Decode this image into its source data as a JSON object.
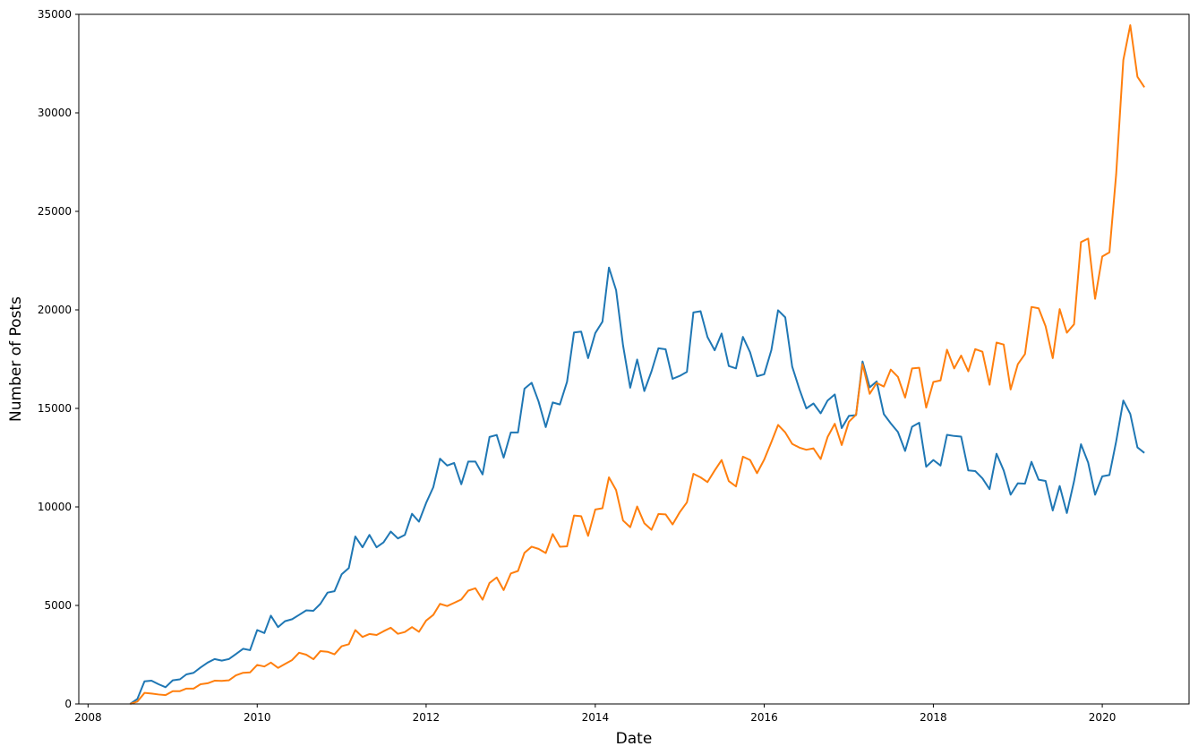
{
  "chart_data": {
    "type": "line",
    "title": "",
    "xlabel": "Date",
    "ylabel": "Number of Posts",
    "xlim": [
      "2007-11-22",
      "2021-01-10"
    ],
    "ylim": [
      0,
      35000
    ],
    "x_ticks": [
      "2008",
      "2010",
      "2012",
      "2014",
      "2016",
      "2018",
      "2020"
    ],
    "y_ticks": [
      "0",
      "5000",
      "10000",
      "15000",
      "20000",
      "25000",
      "30000",
      "35000"
    ],
    "grid": false,
    "legend": "none",
    "series": [
      {
        "color": "#1f77b4",
        "x": [
          "2008-07",
          "2008-08",
          "2008-09",
          "2008-10",
          "2008-11",
          "2008-12",
          "2009-01",
          "2009-02",
          "2009-03",
          "2009-04",
          "2009-05",
          "2009-06",
          "2009-07",
          "2009-08",
          "2009-09",
          "2009-10",
          "2009-11",
          "2009-12",
          "2010-01",
          "2010-02",
          "2010-03",
          "2010-04",
          "2010-05",
          "2010-06",
          "2010-07",
          "2010-08",
          "2010-09",
          "2010-10",
          "2010-11",
          "2010-12",
          "2011-01",
          "2011-02",
          "2011-03",
          "2011-04",
          "2011-05",
          "2011-06",
          "2011-07",
          "2011-08",
          "2011-09",
          "2011-10",
          "2011-11",
          "2011-12",
          "2012-01",
          "2012-02",
          "2012-03",
          "2012-04",
          "2012-05",
          "2012-06",
          "2012-07",
          "2012-08",
          "2012-09",
          "2012-10",
          "2012-11",
          "2012-12",
          "2013-01",
          "2013-02",
          "2013-03",
          "2013-04",
          "2013-05",
          "2013-06",
          "2013-07",
          "2013-08",
          "2013-09",
          "2013-10",
          "2013-11",
          "2013-12",
          "2014-01",
          "2014-02",
          "2014-03",
          "2014-04",
          "2014-05",
          "2014-06",
          "2014-07",
          "2014-08",
          "2014-09",
          "2014-10",
          "2014-11",
          "2014-12",
          "2015-01",
          "2015-02",
          "2015-03",
          "2015-04",
          "2015-05",
          "2015-06",
          "2015-07",
          "2015-08",
          "2015-09",
          "2015-10",
          "2015-11",
          "2015-12",
          "2016-01",
          "2016-02",
          "2016-03",
          "2016-04",
          "2016-05",
          "2016-06",
          "2016-07",
          "2016-08",
          "2016-09",
          "2016-10",
          "2016-11",
          "2016-12",
          "2017-01",
          "2017-02",
          "2017-03",
          "2017-04",
          "2017-05",
          "2017-06",
          "2017-07",
          "2017-08",
          "2017-09",
          "2017-10",
          "2017-11",
          "2017-12",
          "2018-01",
          "2018-02",
          "2018-03",
          "2018-04",
          "2018-05",
          "2018-06",
          "2018-07",
          "2018-08",
          "2018-09",
          "2018-10",
          "2018-11",
          "2018-12",
          "2019-01",
          "2019-02",
          "2019-03",
          "2019-04",
          "2019-05",
          "2019-06",
          "2019-07",
          "2019-08",
          "2019-09",
          "2019-10",
          "2019-11",
          "2019-12",
          "2020-01",
          "2020-02",
          "2020-03",
          "2020-04",
          "2020-05",
          "2020-06",
          "2020-07"
        ],
        "y": [
          0,
          250,
          1150,
          1180,
          1000,
          850,
          1200,
          1250,
          1500,
          1580,
          1850,
          2100,
          2280,
          2200,
          2280,
          2530,
          2800,
          2730,
          3750,
          3600,
          4480,
          3900,
          4200,
          4300,
          4520,
          4750,
          4730,
          5080,
          5650,
          5720,
          6580,
          6900,
          8500,
          7950,
          8580,
          7950,
          8200,
          8750,
          8400,
          8580,
          9650,
          9250,
          10200,
          11000,
          12450,
          12100,
          12230,
          11150,
          12300,
          12300,
          11650,
          13550,
          13650,
          12500,
          13780,
          13780,
          16000,
          16300,
          15350,
          14050,
          15300,
          15200,
          16350,
          18850,
          18900,
          17550,
          18820,
          19400,
          22150,
          21000,
          18200,
          16050,
          17480,
          15880,
          16880,
          18050,
          18000,
          16500,
          16650,
          16850,
          19870,
          19930,
          18620,
          17950,
          18800,
          17150,
          17030,
          18630,
          17850,
          16630,
          16730,
          17960,
          19980,
          19620,
          17120,
          15980,
          15000,
          15250,
          14750,
          15400,
          15710,
          14000,
          14620,
          14660,
          17380,
          16070,
          16370,
          14710,
          14240,
          13800,
          12840,
          14070,
          14270,
          12040,
          12380,
          12100,
          13660,
          13600,
          13570,
          11850,
          11820,
          11450,
          10900,
          12700,
          11850,
          10620,
          11200,
          11180,
          12290,
          11380,
          11320,
          9820,
          11060,
          9690,
          11300,
          13180,
          12250,
          10620,
          11550,
          11620,
          13320,
          15400,
          14720,
          13020,
          12740
        ]
      },
      {
        "color": "#ff7f0e",
        "x": [
          "2008-07",
          "2008-08",
          "2008-09",
          "2008-10",
          "2008-11",
          "2008-12",
          "2009-01",
          "2009-02",
          "2009-03",
          "2009-04",
          "2009-05",
          "2009-06",
          "2009-07",
          "2009-08",
          "2009-09",
          "2009-10",
          "2009-11",
          "2009-12",
          "2010-01",
          "2010-02",
          "2010-03",
          "2010-04",
          "2010-05",
          "2010-06",
          "2010-07",
          "2010-08",
          "2010-09",
          "2010-10",
          "2010-11",
          "2010-12",
          "2011-01",
          "2011-02",
          "2011-03",
          "2011-04",
          "2011-05",
          "2011-06",
          "2011-07",
          "2011-08",
          "2011-09",
          "2011-10",
          "2011-11",
          "2011-12",
          "2012-01",
          "2012-02",
          "2012-03",
          "2012-04",
          "2012-05",
          "2012-06",
          "2012-07",
          "2012-08",
          "2012-09",
          "2012-10",
          "2012-11",
          "2012-12",
          "2013-01",
          "2013-02",
          "2013-03",
          "2013-04",
          "2013-05",
          "2013-06",
          "2013-07",
          "2013-08",
          "2013-09",
          "2013-10",
          "2013-11",
          "2013-12",
          "2014-01",
          "2014-02",
          "2014-03",
          "2014-04",
          "2014-05",
          "2014-06",
          "2014-07",
          "2014-08",
          "2014-09",
          "2014-10",
          "2014-11",
          "2014-12",
          "2015-01",
          "2015-02",
          "2015-03",
          "2015-04",
          "2015-05",
          "2015-06",
          "2015-07",
          "2015-08",
          "2015-09",
          "2015-10",
          "2015-11",
          "2015-12",
          "2016-01",
          "2016-02",
          "2016-03",
          "2016-04",
          "2016-05",
          "2016-06",
          "2016-07",
          "2016-08",
          "2016-09",
          "2016-10",
          "2016-11",
          "2016-12",
          "2017-01",
          "2017-02",
          "2017-03",
          "2017-04",
          "2017-05",
          "2017-06",
          "2017-07",
          "2017-08",
          "2017-09",
          "2017-10",
          "2017-11",
          "2017-12",
          "2018-01",
          "2018-02",
          "2018-03",
          "2018-04",
          "2018-05",
          "2018-06",
          "2018-07",
          "2018-08",
          "2018-09",
          "2018-10",
          "2018-11",
          "2018-12",
          "2019-01",
          "2019-02",
          "2019-03",
          "2019-04",
          "2019-05",
          "2019-06",
          "2019-07",
          "2019-08",
          "2019-09",
          "2019-10",
          "2019-11",
          "2019-12",
          "2020-01",
          "2020-02",
          "2020-03",
          "2020-04",
          "2020-05",
          "2020-06",
          "2020-07"
        ],
        "y": [
          0,
          120,
          560,
          530,
          480,
          450,
          650,
          650,
          780,
          780,
          1000,
          1050,
          1180,
          1170,
          1200,
          1450,
          1580,
          1600,
          1980,
          1900,
          2100,
          1830,
          2030,
          2230,
          2600,
          2500,
          2270,
          2680,
          2650,
          2520,
          2930,
          3030,
          3750,
          3400,
          3550,
          3500,
          3690,
          3870,
          3560,
          3650,
          3900,
          3660,
          4230,
          4520,
          5080,
          4970,
          5130,
          5300,
          5750,
          5870,
          5290,
          6140,
          6420,
          5780,
          6620,
          6750,
          7670,
          7980,
          7870,
          7660,
          8620,
          7980,
          8000,
          9560,
          9530,
          8530,
          9870,
          9930,
          11500,
          10850,
          9310,
          8970,
          10020,
          9170,
          8840,
          9640,
          9620,
          9110,
          9730,
          10230,
          11680,
          11500,
          11260,
          11850,
          12380,
          11310,
          11040,
          12550,
          12380,
          11710,
          12400,
          13290,
          14160,
          13780,
          13200,
          13010,
          12900,
          12970,
          12430,
          13550,
          14220,
          13140,
          14320,
          14680,
          17250,
          15740,
          16290,
          16110,
          16970,
          16600,
          15550,
          17030,
          17060,
          15040,
          16340,
          16420,
          17980,
          17030,
          17680,
          16880,
          18010,
          17880,
          16200,
          18340,
          18240,
          15960,
          17240,
          17760,
          20150,
          20080,
          19170,
          17550,
          20040,
          18840,
          19270,
          23440,
          23620,
          20560,
          22710,
          22920,
          26880,
          32680,
          34450,
          31830,
          31300
        ]
      }
    ]
  }
}
